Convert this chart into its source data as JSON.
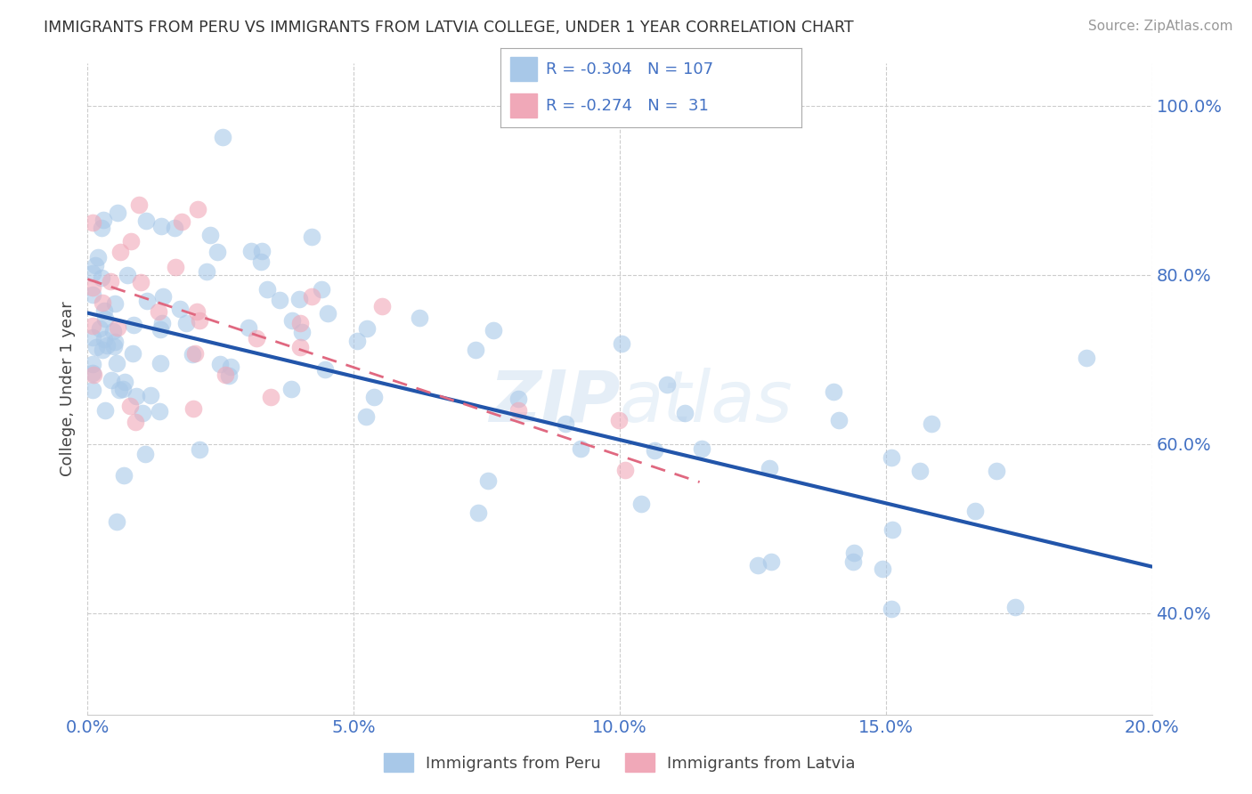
{
  "title": "IMMIGRANTS FROM PERU VS IMMIGRANTS FROM LATVIA COLLEGE, UNDER 1 YEAR CORRELATION CHART",
  "source": "Source: ZipAtlas.com",
  "ylabel": "College, Under 1 year",
  "legend_label_blue": "Immigrants from Peru",
  "legend_label_pink": "Immigrants from Latvia",
  "R_blue": -0.304,
  "N_blue": 107,
  "R_pink": -0.274,
  "N_pink": 31,
  "xmin": 0.0,
  "xmax": 0.2,
  "ymin": 0.28,
  "ymax": 1.05,
  "color_blue": "#a8c8e8",
  "color_pink": "#f0a8b8",
  "color_trendline_blue": "#2255aa",
  "color_trendline_pink": "#e06880",
  "color_text_axis": "#4472c4",
  "watermark": "ZIPatlas",
  "xtick_labels": [
    "0.0%",
    "5.0%",
    "10.0%",
    "15.0%",
    "20.0%"
  ],
  "xtick_positions": [
    0.0,
    0.05,
    0.1,
    0.15,
    0.2
  ],
  "ytick_labels": [
    "40.0%",
    "60.0%",
    "80.0%",
    "100.0%"
  ],
  "ytick_positions": [
    0.4,
    0.6,
    0.8,
    1.0
  ],
  "grid_color": "#cccccc",
  "background_color": "#ffffff",
  "blue_trendline_x0": 0.0,
  "blue_trendline_y0": 0.755,
  "blue_trendline_x1": 0.2,
  "blue_trendline_y1": 0.455,
  "pink_trendline_x0": 0.0,
  "pink_trendline_y0": 0.795,
  "pink_trendline_x1": 0.115,
  "pink_trendline_y1": 0.555
}
